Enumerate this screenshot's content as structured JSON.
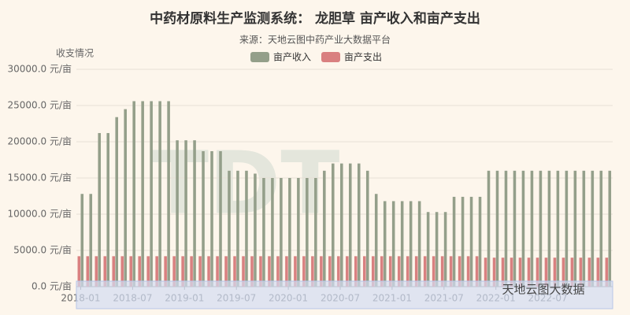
{
  "chart_data": {
    "type": "bar",
    "title": "中药材原料生产监测系统： 龙胆草 亩产收入和亩产支出",
    "subtitle": "来源：天地云图中药产业大数据平台",
    "y_axis_label": "收支情况",
    "watermark": "天地云图大数据",
    "categories": [
      "2018-01",
      null,
      null,
      null,
      null,
      null,
      "2018-07",
      null,
      null,
      null,
      null,
      null,
      "2019-01",
      null,
      null,
      null,
      null,
      null,
      "2019-07",
      null,
      null,
      null,
      null,
      null,
      "2020-01",
      null,
      null,
      null,
      null,
      null,
      "2020-07",
      null,
      null,
      null,
      null,
      null,
      "2021-01",
      null,
      null,
      null,
      null,
      null,
      "2021-07",
      null,
      null,
      null,
      null,
      null,
      "2022-01",
      null,
      null,
      null,
      null,
      null,
      "2022-07",
      null,
      null,
      null,
      null,
      null,
      null,
      null
    ],
    "series": [
      {
        "name": "亩产支出",
        "color": "#d98080",
        "values": [
          4200,
          4200,
          4200,
          4200,
          4200,
          4200,
          4200,
          4200,
          4200,
          4200,
          4200,
          4200,
          4200,
          4200,
          4200,
          4200,
          4200,
          4200,
          4200,
          4200,
          4200,
          4200,
          4200,
          4200,
          4200,
          4200,
          4200,
          4200,
          4200,
          4200,
          4200,
          4200,
          4200,
          4200,
          4200,
          4200,
          4200,
          4200,
          4200,
          4200,
          4200,
          4200,
          4200,
          4200,
          4200,
          4200,
          4200,
          4000,
          4000,
          4000,
          4000,
          4000,
          4000,
          4000,
          4000,
          4000,
          4000,
          4000,
          4000,
          4000,
          4000,
          4000
        ]
      },
      {
        "name": "亩产收入",
        "color": "#949f8a",
        "values": [
          12800,
          12800,
          21200,
          21200,
          23400,
          24500,
          25600,
          25600,
          25600,
          25600,
          25600,
          20200,
          20200,
          20200,
          18700,
          18700,
          18700,
          16000,
          16000,
          16000,
          15600,
          15000,
          15000,
          15000,
          15000,
          15000,
          15000,
          15000,
          16000,
          17000,
          17000,
          17000,
          17000,
          16000,
          12800,
          11800,
          11800,
          11800,
          11800,
          11800,
          10300,
          10300,
          10300,
          12400,
          12400,
          12400,
          12400,
          16000,
          16000,
          16000,
          16000,
          16000,
          16000,
          16000,
          16000,
          16000,
          16000,
          16000,
          16000,
          16000,
          16000,
          16000
        ]
      }
    ],
    "ylim": [
      0,
      30000
    ],
    "yticks": [
      {
        "value": 0,
        "label": "0.0 元/亩"
      },
      {
        "value": 5000,
        "label": "5000.0 元/亩"
      },
      {
        "value": 10000,
        "label": "10000.0 元/亩"
      },
      {
        "value": 15000,
        "label": "15000.0 元/亩"
      },
      {
        "value": 20000,
        "label": "20000.0 元/亩"
      },
      {
        "value": 25000,
        "label": "25000.0 元/亩"
      },
      {
        "value": 30000,
        "label": "30000.0 元/亩"
      }
    ],
    "grid": true
  }
}
